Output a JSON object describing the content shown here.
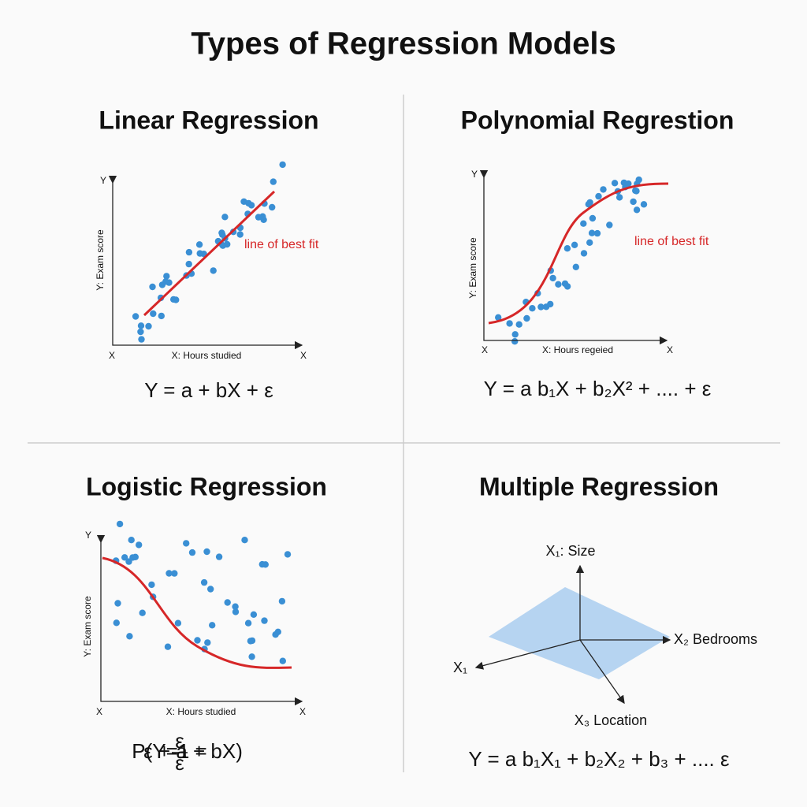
{
  "header": {
    "title": "Types of Regression Models"
  },
  "panels": [
    {
      "title": "Linear Regression",
      "y_axis_end": "Y",
      "x_axis_start": "X",
      "x_axis_end": "X",
      "x_label": "X: Hours studied",
      "y_label": "Y: Exam score",
      "annotation": "line of best fit",
      "formula": "Y = a + bX + ε"
    },
    {
      "title": "Polynomial Regrestion",
      "y_axis_end": "Y",
      "x_axis_start": "X",
      "x_axis_end": "X",
      "x_label": "X: Hours regeied",
      "y_label": "Y: Exam score",
      "annotation": "line of best fit",
      "formula": "Y = a b₁X + b₂X² + .... + ε"
    },
    {
      "title": "Logistic Regression",
      "y_axis_end": "Y",
      "x_axis_start": "X",
      "x_axis_end": "X",
      "x_label": "X: Hours studied",
      "y_label": "Y: Exam score",
      "formula": {
        "prefix": "P(Y=1 =",
        "numerator": "ε",
        "denominator": "ε",
        "suffix": "ε + a + bX)"
      }
    },
    {
      "title": "Multiple Regression",
      "axis_labels": [
        "X₁: Size",
        "X₂ Bedrooms",
        "X₁",
        "X₃ Location"
      ],
      "formula": "Y = a b₁X₁ + b₂X₂ + b₃ + .... ε"
    }
  ]
}
